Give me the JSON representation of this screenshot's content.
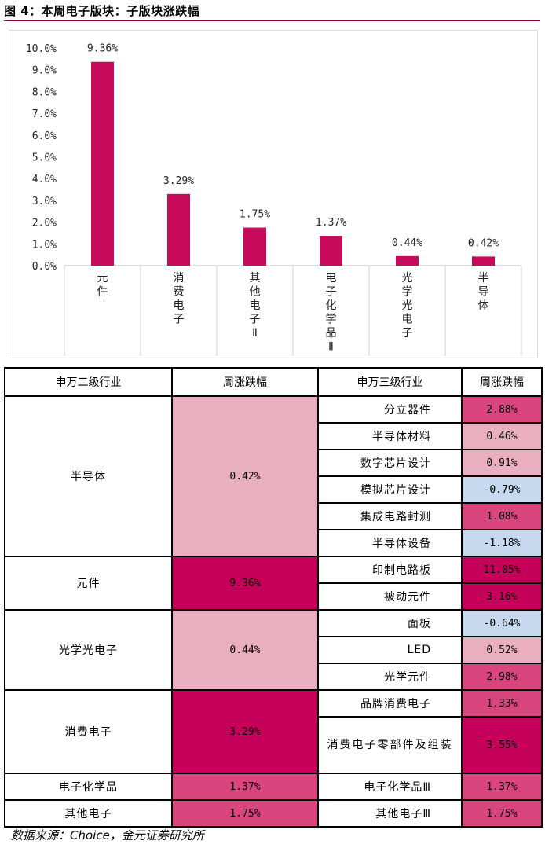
{
  "figure": {
    "title": "图 4：本周电子版块：子版块涨跌幅"
  },
  "chart_data": {
    "type": "bar",
    "categories": [
      "元件",
      "消费电子",
      "其他电子Ⅱ",
      "电子化学品Ⅱ",
      "光学光电子",
      "半导体"
    ],
    "category_lines": [
      [
        "元",
        "件"
      ],
      [
        "消",
        "费",
        "电",
        "子"
      ],
      [
        "其",
        "他",
        "电",
        "子",
        "Ⅱ"
      ],
      [
        "电",
        "子",
        "化",
        "学",
        "品",
        "Ⅱ"
      ],
      [
        "光",
        "学",
        "光",
        "电",
        "子"
      ],
      [
        "半",
        "导",
        "体"
      ]
    ],
    "values": [
      9.36,
      3.29,
      1.75,
      1.37,
      0.44,
      0.42
    ],
    "data_labels": [
      "9.36%",
      "3.29%",
      "1.75%",
      "1.37%",
      "0.44%",
      "0.42%"
    ],
    "ylim": [
      0,
      10
    ],
    "yticks": [
      "0.0%",
      "1.0%",
      "2.0%",
      "3.0%",
      "4.0%",
      "5.0%",
      "6.0%",
      "7.0%",
      "8.0%",
      "9.0%",
      "10.0%"
    ],
    "bar_color": "#c70a5a",
    "grid": false
  },
  "table": {
    "headers": [
      "申万二级行业",
      "周涨跌幅",
      "申万三级行业",
      "周涨跌幅"
    ],
    "colors": {
      "strong_pos": "#c5005a",
      "mid_pos": "#d9467e",
      "light_pos": "#e9aebf",
      "neg": "#c7d9ef"
    },
    "groups": [
      {
        "name": "半导体",
        "change": "0.42%",
        "level": "light_pos",
        "subs": [
          {
            "name": "分立器件",
            "change": "2.88%",
            "level": "mid_pos"
          },
          {
            "name": "半导体材料",
            "change": "0.46%",
            "level": "light_pos"
          },
          {
            "name": "数字芯片设计",
            "change": "0.91%",
            "level": "light_pos"
          },
          {
            "name": "模拟芯片设计",
            "change": "-0.79%",
            "level": "neg"
          },
          {
            "name": "集成电路封测",
            "change": "1.08%",
            "level": "mid_pos"
          },
          {
            "name": "半导体设备",
            "change": "-1.18%",
            "level": "neg"
          }
        ]
      },
      {
        "name": "元件",
        "change": "9.36%",
        "level": "strong_pos",
        "subs": [
          {
            "name": "印制电路板",
            "change": "11.05%",
            "level": "strong_pos"
          },
          {
            "name": "被动元件",
            "change": "3.16%",
            "level": "strong_pos"
          }
        ]
      },
      {
        "name": "光学光电子",
        "change": "0.44%",
        "level": "light_pos",
        "subs": [
          {
            "name": "面板",
            "change": "-0.64%",
            "level": "neg"
          },
          {
            "name": "LED",
            "change": "0.52%",
            "level": "light_pos"
          },
          {
            "name": "光学元件",
            "change": "2.98%",
            "level": "mid_pos"
          }
        ]
      },
      {
        "name": "消费电子",
        "change": "3.29%",
        "level": "strong_pos",
        "subs": [
          {
            "name": "品牌消费电子",
            "change": "1.33%",
            "level": "mid_pos"
          },
          {
            "name": "消费电子零部件及组装",
            "change": "3.55%",
            "level": "strong_pos",
            "tall": true
          }
        ]
      },
      {
        "name": "电子化学品",
        "change": "1.37%",
        "level": "mid_pos",
        "subs": [
          {
            "name": "电子化学品Ⅲ",
            "change": "1.37%",
            "level": "mid_pos"
          }
        ]
      },
      {
        "name": "其他电子",
        "change": "1.75%",
        "level": "mid_pos",
        "subs": [
          {
            "name": "其他电子Ⅲ",
            "change": "1.75%",
            "level": "mid_pos"
          }
        ]
      }
    ]
  },
  "source": "数据来源：Choice，金元证券研究所"
}
